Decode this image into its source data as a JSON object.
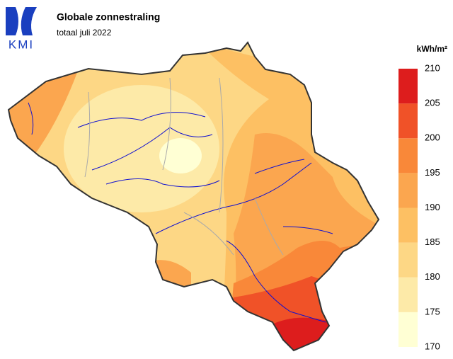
{
  "logo": "KMI",
  "header": {
    "title": "Globale zonnestraling",
    "subtitle": "totaal juli 2022"
  },
  "legend": {
    "unit": "kWh/m²",
    "ticks": [
      170,
      175,
      180,
      185,
      190,
      195,
      200,
      205,
      210
    ],
    "colors": [
      "#ffffd4",
      "#fdeaa8",
      "#fdd785",
      "#fdc063",
      "#fba64f",
      "#f98839",
      "#f05228",
      "#dd1d1d"
    ]
  }
}
